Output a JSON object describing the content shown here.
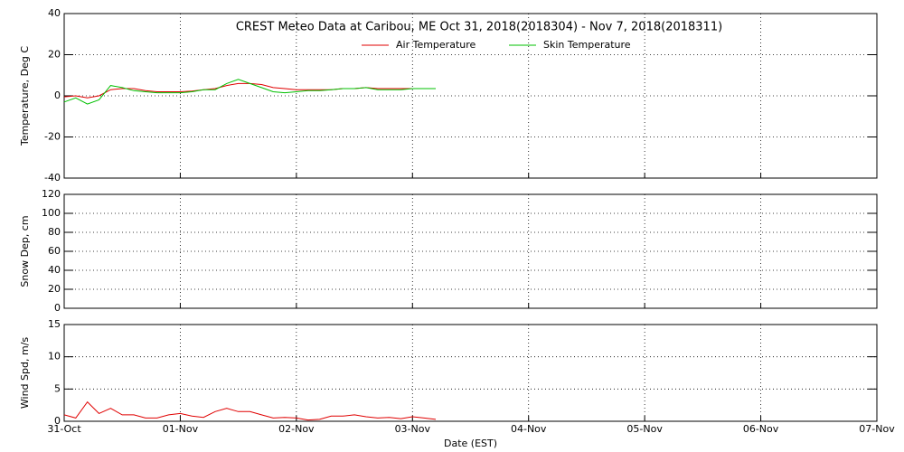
{
  "chart_data": [
    {
      "type": "line",
      "title": "CREST Meteo Data at Caribou, ME   Oct 31, 2018(2018304) - Nov  7, 2018(2018311)",
      "ylabel": "Temperature, Deg C",
      "ylim": [
        -40,
        40
      ],
      "yticks": [
        -40,
        -20,
        0,
        20,
        40
      ],
      "xlim": [
        0,
        7
      ],
      "xticks": [
        0,
        1,
        2,
        3,
        4,
        5,
        6,
        7
      ],
      "grid": true,
      "legend": "top",
      "x": [
        0,
        0.1,
        0.2,
        0.3,
        0.4,
        0.5,
        0.6,
        0.7,
        0.8,
        0.9,
        1.0,
        1.1,
        1.2,
        1.3,
        1.4,
        1.5,
        1.6,
        1.7,
        1.8,
        1.9,
        2.0,
        2.1,
        2.2,
        2.3,
        2.4,
        2.5,
        2.6,
        2.7,
        2.8,
        2.9,
        3.0,
        3.1,
        3.2
      ],
      "series": [
        {
          "name": "Air Temperature",
          "color": "#e00000",
          "values": [
            -0.5,
            0,
            -1,
            0,
            3,
            3.5,
            3.5,
            2.5,
            2,
            2,
            2,
            2.3,
            3,
            3.5,
            5,
            6,
            6,
            5.5,
            4,
            3.5,
            3,
            3,
            3,
            3,
            3.5,
            3.5,
            4,
            3.5,
            3.5,
            3.5,
            3.5,
            3.5,
            3.5
          ]
        },
        {
          "name": "Skin Temperature",
          "color": "#00c000",
          "values": [
            -3,
            -1,
            -4,
            -2,
            5,
            4,
            2.5,
            2,
            1.5,
            1.5,
            1.5,
            2,
            3,
            3,
            6,
            8,
            6,
            4,
            2,
            1.5,
            2,
            2.5,
            2.5,
            3,
            3.5,
            3.5,
            4,
            3,
            3,
            3,
            3.5,
            3.5,
            3.5
          ]
        }
      ]
    },
    {
      "type": "line",
      "ylabel": "Snow Dep, cm",
      "ylim": [
        0,
        120
      ],
      "yticks": [
        0,
        20,
        40,
        60,
        80,
        100,
        120
      ],
      "xlim": [
        0,
        7
      ],
      "xticks": [
        0,
        1,
        2,
        3,
        4,
        5,
        6,
        7
      ],
      "grid": true
    },
    {
      "type": "line",
      "ylabel": "Wind Spd, m/s",
      "xlabel": "Date (EST)",
      "ylim": [
        0,
        15
      ],
      "yticks": [
        0,
        5,
        10,
        15
      ],
      "xlim": [
        0,
        7
      ],
      "grid": true,
      "xticks": [
        {
          "value": 0,
          "label": "31-Oct"
        },
        {
          "value": 1,
          "label": "01-Nov"
        },
        {
          "value": 2,
          "label": "02-Nov"
        },
        {
          "value": 3,
          "label": "03-Nov"
        },
        {
          "value": 4,
          "label": "04-Nov"
        },
        {
          "value": 5,
          "label": "05-Nov"
        },
        {
          "value": 6,
          "label": "06-Nov"
        },
        {
          "value": 7,
          "label": "07-Nov"
        }
      ],
      "x": [
        0,
        0.1,
        0.2,
        0.3,
        0.4,
        0.5,
        0.6,
        0.7,
        0.8,
        0.9,
        1.0,
        1.1,
        1.2,
        1.3,
        1.4,
        1.5,
        1.6,
        1.7,
        1.8,
        1.9,
        2.0,
        2.1,
        2.2,
        2.3,
        2.4,
        2.5,
        2.6,
        2.7,
        2.8,
        2.9,
        3.0,
        3.1,
        3.2
      ],
      "series": [
        {
          "color": "#e00000",
          "values": [
            1,
            0.5,
            3,
            1.2,
            2,
            1,
            1,
            0.5,
            0.5,
            1,
            1.2,
            0.8,
            0.6,
            1.5,
            2,
            1.5,
            1.5,
            1,
            0.5,
            0.6,
            0.5,
            0.2,
            0.3,
            0.8,
            0.8,
            1,
            0.7,
            0.5,
            0.6,
            0.4,
            0.7,
            0.5,
            0.3
          ]
        }
      ]
    }
  ]
}
